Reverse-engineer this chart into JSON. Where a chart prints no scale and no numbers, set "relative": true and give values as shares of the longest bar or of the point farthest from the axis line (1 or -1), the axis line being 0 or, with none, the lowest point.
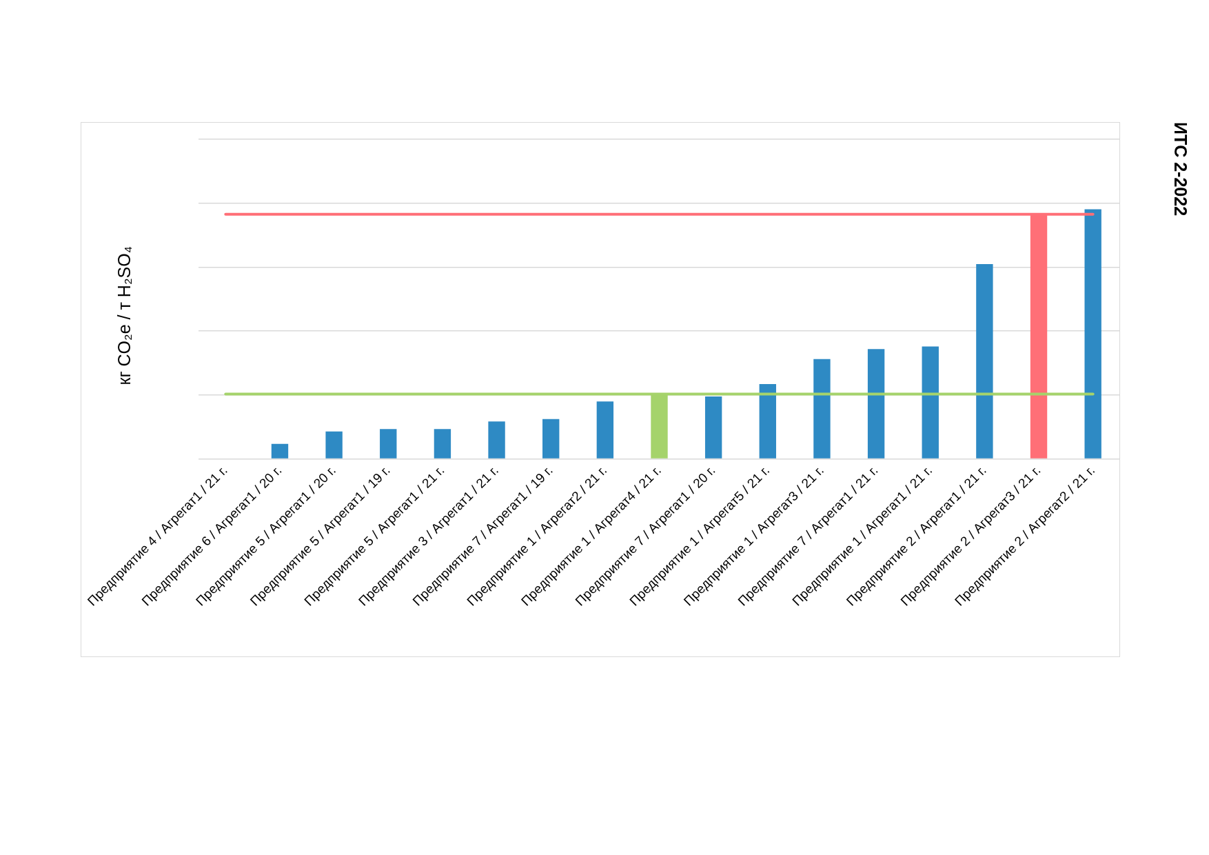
{
  "chart_data": {
    "type": "bar",
    "ylabel": "кг CO₂e / т H₂SO₄",
    "annotations": [
      "ИТС 2-2022"
    ],
    "categories": [
      "Предприятие 4 / Агрегат1 / 21 г.",
      "Предприятие 6 / Агрегат1 / 20 г.",
      "Предприятие 5 / Агрегат1 / 20 г.",
      "Предприятие 5 / Агрегат1 / 19 г.",
      "Предприятие 5 / Агрегат1 / 21 г.",
      "Предприятие 3 / Агрегат1 / 21 г.",
      "Предприятие 7 / Агрегат1 / 19 г.",
      "Предприятие 1 / Агрегат2 / 21 г.",
      "Предприятие 1 / Агрегат4 / 21 г.",
      "Предприятие 7 / Агрегат1 / 20 г.",
      "Предприятие 1 / Агрегат5 / 21 г.",
      "Предприятие 1 / Агрегат3 / 21 г.",
      "Предприятие 7 / Агрегат1 / 21 г.",
      "Предприятие 1 / Агрегат1 / 21 г.",
      "Предприятие 2 / Агрегат1 / 21 г.",
      "Предприятие 2 / Агрегат3 / 21 г.",
      "Предприятие 2 / Агрегат2 / 21 г."
    ],
    "values": [
      null,
      0.06,
      0.11,
      0.12,
      0.12,
      0.15,
      0.16,
      0.23,
      0.26,
      0.25,
      0.3,
      0.4,
      0.44,
      0.45,
      0.78,
      0.98,
      1
    ],
    "colors": [
      "#2e8ac4",
      "#2e8ac4",
      "#2e8ac4",
      "#2e8ac4",
      "#2e8ac4",
      "#2e8ac4",
      "#2e8ac4",
      "#2e8ac4",
      "#a5d36b",
      "#2e8ac4",
      "#2e8ac4",
      "#2e8ac4",
      "#2e8ac4",
      "#2e8ac4",
      "#2e8ac4",
      "#ff6f77",
      "#2e8ac4"
    ],
    "relative": true,
    "grid": "y",
    "ref_lines": [
      {
        "axis": "y",
        "value": 0.98,
        "color": "#ff6f77"
      },
      {
        "axis": "y",
        "value": 0.26,
        "color": "#a5d36b"
      }
    ]
  }
}
